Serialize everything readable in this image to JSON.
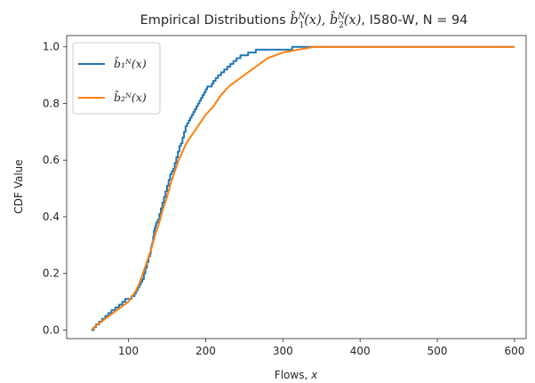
{
  "chart_data": {
    "type": "line",
    "title_prefix": "Empirical Distributions ",
    "title_suffix": ", I580-W, N = 94",
    "xlabel_text": "Flows, ",
    "xlabel_var": "x",
    "ylabel": "CDF Value",
    "xlim": [
      20,
      615
    ],
    "ylim": [
      -0.03,
      1.04
    ],
    "xticks": [
      100,
      200,
      300,
      400,
      500,
      600
    ],
    "yticks": [
      0.0,
      0.2,
      0.4,
      0.6,
      0.8,
      1.0
    ],
    "ytick_labels": [
      "0.0",
      "0.2",
      "0.4",
      "0.6",
      "0.8",
      "1.0"
    ],
    "grid": false,
    "legend_position": "upper-left",
    "series": [
      {
        "name": "b̂₁ᴺ(x)",
        "color": "#1f77b4",
        "style": "step",
        "x": [
          52,
          55,
          58,
          62,
          66,
          70,
          74,
          78,
          83,
          88,
          92,
          96,
          100,
          104,
          108,
          110,
          112,
          114,
          116,
          118,
          120,
          122,
          124,
          126,
          128,
          129,
          130,
          131,
          132,
          133,
          134,
          135,
          136,
          138,
          140,
          142,
          144,
          146,
          148,
          150,
          152,
          154,
          156,
          158,
          160,
          162,
          164,
          166,
          168,
          170,
          172,
          174,
          176,
          178,
          180,
          182,
          184,
          186,
          188,
          190,
          192,
          194,
          196,
          198,
          200,
          202,
          205,
          208,
          210,
          213,
          216,
          220,
          224,
          228,
          232,
          236,
          240,
          245,
          250,
          255,
          260,
          265,
          270,
          275,
          280,
          288,
          295,
          305,
          312,
          320,
          330,
          345,
          600
        ],
        "y": [
          0.0,
          0.01,
          0.02,
          0.03,
          0.04,
          0.05,
          0.06,
          0.07,
          0.08,
          0.09,
          0.1,
          0.11,
          0.11,
          0.12,
          0.13,
          0.14,
          0.15,
          0.16,
          0.17,
          0.18,
          0.2,
          0.22,
          0.24,
          0.26,
          0.27,
          0.29,
          0.3,
          0.31,
          0.33,
          0.35,
          0.36,
          0.37,
          0.38,
          0.39,
          0.41,
          0.43,
          0.45,
          0.47,
          0.49,
          0.51,
          0.53,
          0.55,
          0.56,
          0.57,
          0.59,
          0.61,
          0.63,
          0.65,
          0.66,
          0.68,
          0.7,
          0.72,
          0.73,
          0.74,
          0.75,
          0.76,
          0.77,
          0.78,
          0.79,
          0.8,
          0.81,
          0.82,
          0.83,
          0.84,
          0.85,
          0.86,
          0.86,
          0.87,
          0.88,
          0.89,
          0.9,
          0.91,
          0.92,
          0.93,
          0.94,
          0.95,
          0.96,
          0.97,
          0.97,
          0.98,
          0.98,
          0.99,
          0.99,
          0.99,
          0.99,
          0.99,
          0.99,
          0.99,
          1.0,
          1.0,
          1.0,
          1.0,
          1.0
        ]
      },
      {
        "name": "b̂₂ᴺ(x)",
        "color": "#ff7f0e",
        "style": "line",
        "x": [
          52,
          60,
          70,
          80,
          90,
          100,
          110,
          115,
          120,
          125,
          130,
          135,
          140,
          145,
          150,
          155,
          160,
          165,
          170,
          175,
          180,
          185,
          190,
          195,
          200,
          210,
          220,
          230,
          240,
          250,
          260,
          270,
          280,
          290,
          300,
          310,
          320,
          330,
          340,
          350,
          400,
          450,
          500,
          550,
          600
        ],
        "y": [
          0.0,
          0.02,
          0.04,
          0.06,
          0.08,
          0.1,
          0.14,
          0.17,
          0.21,
          0.25,
          0.29,
          0.34,
          0.38,
          0.43,
          0.47,
          0.52,
          0.56,
          0.6,
          0.63,
          0.66,
          0.68,
          0.7,
          0.72,
          0.74,
          0.76,
          0.79,
          0.83,
          0.86,
          0.88,
          0.9,
          0.92,
          0.94,
          0.96,
          0.97,
          0.98,
          0.985,
          0.99,
          0.995,
          1.0,
          1.0,
          1.0,
          1.0,
          1.0,
          1.0,
          1.0
        ]
      }
    ]
  }
}
